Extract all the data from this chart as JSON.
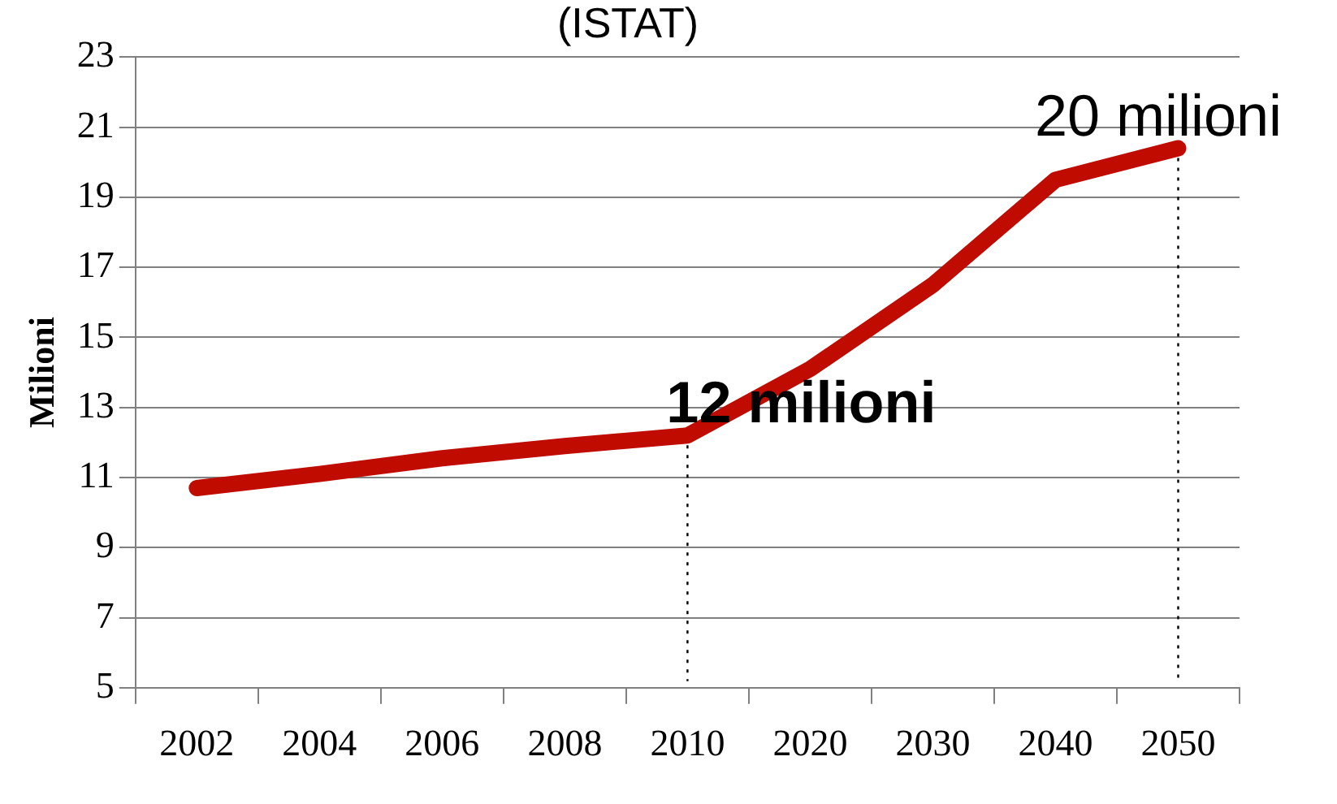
{
  "chart_data": {
    "type": "line",
    "title": "(ISTAT)",
    "ylabel": "Milioni",
    "categories": [
      "2002",
      "2004",
      "2006",
      "2008",
      "2010",
      "2020",
      "2030",
      "2040",
      "2050"
    ],
    "series": [
      {
        "color": "#c00c00",
        "values": [
          10.7,
          11.1,
          11.55,
          11.9,
          12.2,
          14.1,
          16.5,
          19.5,
          20.4
        ]
      }
    ],
    "ylim": [
      5,
      23
    ],
    "yticks": [
      5,
      7,
      9,
      11,
      13,
      15,
      17,
      19,
      21,
      23
    ],
    "grid": "y",
    "legend": false,
    "marker": "none",
    "line_style": "solid",
    "ref_lines": [
      {
        "axis": "x",
        "value": "2010",
        "color": "#000000",
        "line_style": "dotted"
      },
      {
        "axis": "x",
        "value": "2050",
        "color": "#000000",
        "line_style": "dotted"
      }
    ],
    "annotations": [
      {
        "text": "12 milioni",
        "x": "2010",
        "y": 12.2
      },
      {
        "text": "20 milioni",
        "x": "2050",
        "y": 20.4
      }
    ]
  }
}
